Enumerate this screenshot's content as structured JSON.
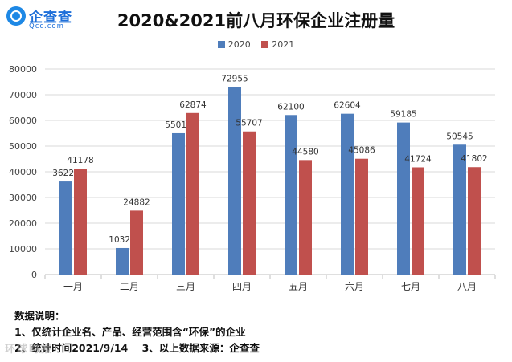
{
  "logo": {
    "name": "企查查",
    "domain": "Qcc.com"
  },
  "watermark": "环球时报",
  "colors": {
    "series_2020": "#4f7dbb",
    "series_2021": "#c0504d",
    "grid": "#d9d9d9",
    "axis": "#bfbfbf"
  },
  "chart_data": {
    "type": "bar",
    "title": "2020&2021前八月环保企业注册量",
    "categories": [
      "一月",
      "二月",
      "三月",
      "四月",
      "五月",
      "六月",
      "七月",
      "八月"
    ],
    "series": [
      {
        "name": "2020",
        "values": [
          36229,
          10322,
          55013,
          72955,
          62100,
          62604,
          59185,
          50545
        ]
      },
      {
        "name": "2021",
        "values": [
          41178,
          24882,
          62874,
          55707,
          44580,
          45086,
          41724,
          41802
        ]
      }
    ],
    "yticks": [
      0,
      10000,
      20000,
      30000,
      40000,
      50000,
      60000,
      70000,
      80000
    ],
    "ylim": [
      0,
      80000
    ],
    "xlabel": "",
    "ylabel": "",
    "grid": true,
    "legend_position": "top-center",
    "data_labels": true
  },
  "notes": {
    "heading": "数据说明：",
    "line1": "1、仅统计企业名、产品、经营范围含“环保”的企业",
    "line2": "2、统计时间2021/9/14    3、以上数据来源：企查查"
  }
}
